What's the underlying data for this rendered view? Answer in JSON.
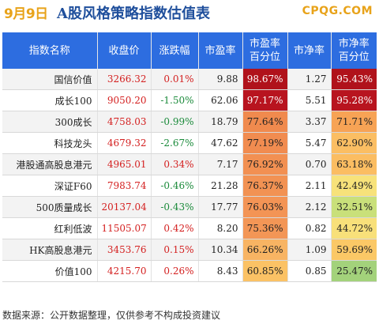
{
  "header": {
    "date": "9月9日",
    "title": "A股风格策略指数估值表",
    "brand": "CPQG.COM"
  },
  "columns": [
    "指数名称",
    "收盘价",
    "涨跌幅",
    "市盈率",
    "市盈率\n百分位",
    "市净率",
    "市净率\n百分位"
  ],
  "rows": [
    {
      "name": "国信价值",
      "close": "3266.32",
      "change": "0.01%",
      "pe": "9.88",
      "pe_pct": "98.67%",
      "pb": "1.27",
      "pb_pct": "95.43%",
      "change_color": "#d42020",
      "pe_pct_color": "#b0121b",
      "pb_pct_color": "#b0121b"
    },
    {
      "name": "成长100",
      "close": "9050.20",
      "change": "-1.50%",
      "pe": "62.06",
      "pe_pct": "97.17%",
      "pb": "5.51",
      "pb_pct": "95.28%",
      "change_color": "#1a8a3a",
      "pe_pct_color": "#b8141f",
      "pb_pct_color": "#b8141f"
    },
    {
      "name": "300成长",
      "close": "4758.03",
      "change": "-0.99%",
      "pe": "18.79",
      "pe_pct": "77.64%",
      "pb": "3.37",
      "pb_pct": "71.71%",
      "change_color": "#1a8a3a",
      "pe_pct_color": "#f08a4e",
      "pb_pct_color": "#f7a355"
    },
    {
      "name": "科技龙头",
      "close": "4679.32",
      "change": "-2.67%",
      "pe": "47.62",
      "pe_pct": "77.19%",
      "pb": "5.47",
      "pb_pct": "62.90%",
      "change_color": "#1a8a3a",
      "pe_pct_color": "#f18c50",
      "pb_pct_color": "#fbbe63"
    },
    {
      "name": "港股通高股息港元",
      "close": "4965.01",
      "change": "0.34%",
      "pe": "7.17",
      "pe_pct": "76.92%",
      "pb": "0.70",
      "pb_pct": "63.18%",
      "change_color": "#d42020",
      "pe_pct_color": "#f29052",
      "pb_pct_color": "#fbbd62"
    },
    {
      "name": "深证F60",
      "close": "7983.74",
      "change": "-0.46%",
      "pe": "21.28",
      "pe_pct": "76.37%",
      "pb": "2.11",
      "pb_pct": "42.49%",
      "change_color": "#1a8a3a",
      "pe_pct_color": "#f29253",
      "pb_pct_color": "#f7e27a"
    },
    {
      "name": "500质量成长",
      "close": "20137.04",
      "change": "-0.43%",
      "pe": "17.77",
      "pe_pct": "76.03%",
      "pb": "2.12",
      "pb_pct": "32.51%",
      "change_color": "#1a8a3a",
      "pe_pct_color": "#f39455",
      "pb_pct_color": "#c9e07a"
    },
    {
      "name": "红利低波",
      "close": "11505.07",
      "change": "0.42%",
      "pe": "8.20",
      "pe_pct": "75.36%",
      "pb": "0.82",
      "pb_pct": "44.72%",
      "change_color": "#d42020",
      "pe_pct_color": "#f39656",
      "pb_pct_color": "#f8e07a"
    },
    {
      "name": "HK高股息港元",
      "close": "3453.76",
      "change": "0.15%",
      "pe": "10.34",
      "pe_pct": "66.26%",
      "pb": "1.09",
      "pb_pct": "59.69%",
      "change_color": "#d42020",
      "pe_pct_color": "#f8b463",
      "pb_pct_color": "#fbc866"
    },
    {
      "name": "价值100",
      "close": "4215.70",
      "change": "0.26%",
      "pe": "8.43",
      "pe_pct": "60.85%",
      "pb": "0.85",
      "pb_pct": "25.47%",
      "change_color": "#d42020",
      "pe_pct_color": "#fbc265",
      "pb_pct_color": "#a3d27b"
    }
  ],
  "footer": "数据来源：公开数据整理，仅供参考不构成投资建议"
}
